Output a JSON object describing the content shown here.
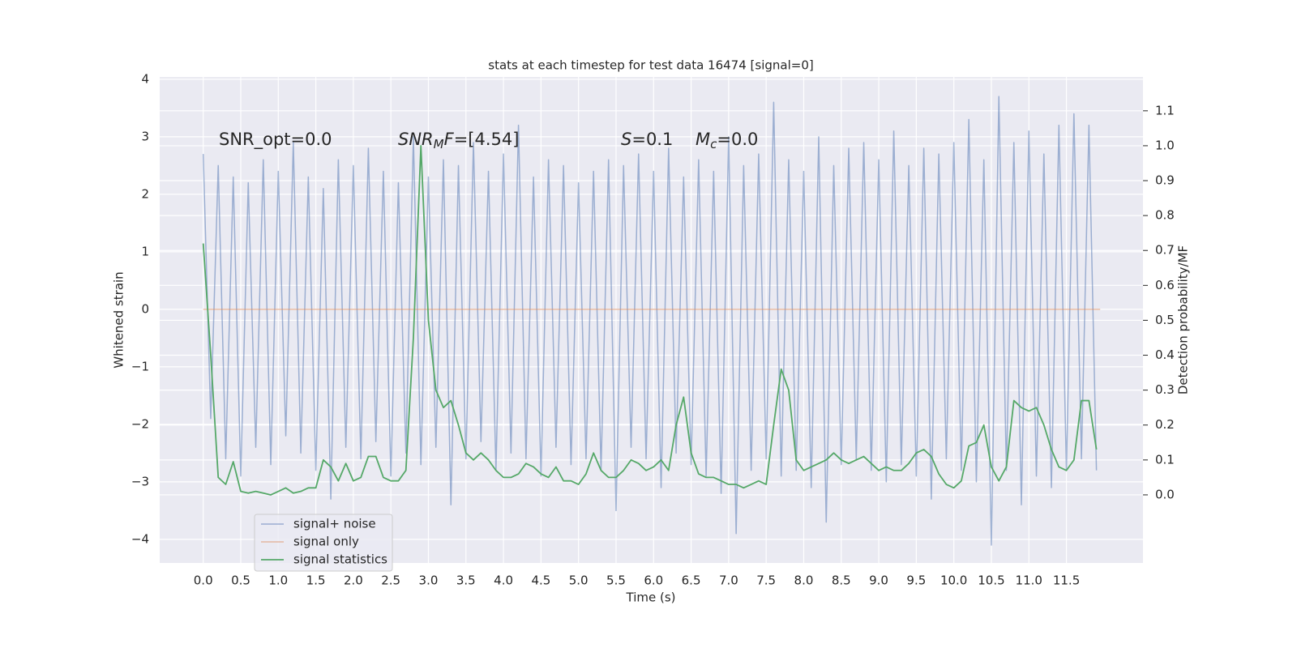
{
  "chart_data": {
    "type": "line",
    "title": "stats at each timestep for test data 16474 [signal=0]",
    "xlabel": "Time (s)",
    "ylabel": "Whitened strain",
    "y2label": "Detection probability/MF",
    "annotations": [
      [
        "SNR_opt=0.0"
      ],
      [
        "SNR",
        "M",
        "F",
        "=[4.54]"
      ],
      [
        "S",
        "=0.1"
      ],
      [
        "M",
        "c",
        "=0.0"
      ]
    ],
    "xlim": [
      -0.58,
      12.52
    ],
    "ylim": [
      -4.41,
      4.04
    ],
    "y2lim": [
      -0.195,
      1.197
    ],
    "xticks": [
      {
        "value": 0,
        "label": "0.0"
      },
      {
        "value": 0.5,
        "label": "0.5"
      },
      {
        "value": 1,
        "label": "1.0"
      },
      {
        "value": 1.5,
        "label": "1.5"
      },
      {
        "value": 2,
        "label": "2.0"
      },
      {
        "value": 2.5,
        "label": "2.5"
      },
      {
        "value": 3,
        "label": "3.0"
      },
      {
        "value": 3.5,
        "label": "3.5"
      },
      {
        "value": 4,
        "label": "4.0"
      },
      {
        "value": 4.5,
        "label": "4.5"
      },
      {
        "value": 5,
        "label": "5.0"
      },
      {
        "value": 5.5,
        "label": "5.5"
      },
      {
        "value": 6,
        "label": "6.0"
      },
      {
        "value": 6.5,
        "label": "6.5"
      },
      {
        "value": 7,
        "label": "7.0"
      },
      {
        "value": 7.5,
        "label": "7.5"
      },
      {
        "value": 8,
        "label": "8.0"
      },
      {
        "value": 8.5,
        "label": "8.5"
      },
      {
        "value": 9,
        "label": "9.0"
      },
      {
        "value": 9.5,
        "label": "9.5"
      },
      {
        "value": 10,
        "label": "10.0"
      },
      {
        "value": 10.5,
        "label": "10.5"
      },
      {
        "value": 11,
        "label": "11.0"
      },
      {
        "value": 11.5,
        "label": "11.5"
      }
    ],
    "yticks": [
      {
        "value": -4,
        "label": "−4"
      },
      {
        "value": -3,
        "label": "−3"
      },
      {
        "value": -2,
        "label": "−2"
      },
      {
        "value": -1,
        "label": "−1"
      },
      0,
      1,
      2,
      3,
      4
    ],
    "y2ticks": [
      {
        "value": 0,
        "label": "0.0"
      },
      {
        "value": 0.1,
        "label": "0.1"
      },
      {
        "value": 0.2,
        "label": "0.2"
      },
      {
        "value": 0.3,
        "label": "0.3"
      },
      {
        "value": 0.4,
        "label": "0.4"
      },
      {
        "value": 0.5,
        "label": "0.5"
      },
      {
        "value": 0.6,
        "label": "0.6"
      },
      {
        "value": 0.7,
        "label": "0.7"
      },
      {
        "value": 0.8,
        "label": "0.8"
      },
      {
        "value": 0.9,
        "label": "0.9"
      },
      {
        "value": 1,
        "label": "1.0"
      },
      {
        "value": 1.1,
        "label": "1.1"
      }
    ],
    "grid": true,
    "legend": "lower left",
    "x": [
      0,
      0.1,
      0.2,
      0.3,
      0.4,
      0.5,
      0.6,
      0.7,
      0.8,
      0.9,
      1,
      1.1,
      1.2,
      1.3,
      1.4,
      1.5,
      1.6,
      1.7,
      1.8,
      1.9,
      2,
      2.1,
      2.2,
      2.3,
      2.4,
      2.5,
      2.6,
      2.7,
      2.8,
      2.9,
      3,
      3.1,
      3.2,
      3.3,
      3.4,
      3.5,
      3.6,
      3.7,
      3.8,
      3.9,
      4,
      4.1,
      4.2,
      4.3,
      4.4,
      4.5,
      4.6,
      4.7,
      4.8,
      4.9,
      5,
      5.1,
      5.2,
      5.3,
      5.4,
      5.5,
      5.6,
      5.7,
      5.8,
      5.9,
      6,
      6.1,
      6.2,
      6.3,
      6.4,
      6.5,
      6.6,
      6.7,
      6.8,
      6.9,
      7,
      7.1,
      7.2,
      7.3,
      7.4,
      7.5,
      7.6,
      7.7,
      7.8,
      7.9,
      8,
      8.1,
      8.2,
      8.3,
      8.4,
      8.5,
      8.6,
      8.7,
      8.8,
      8.9,
      9,
      9.1,
      9.2,
      9.3,
      9.4,
      9.5,
      9.6,
      9.7,
      9.8,
      9.9,
      10,
      10.1,
      10.2,
      10.3,
      10.4,
      10.5,
      10.6,
      10.7,
      10.8,
      10.9,
      11,
      11.1,
      11.2,
      11.3,
      11.4,
      11.5,
      11.6,
      11.7,
      11.8,
      11.9
    ],
    "series": [
      {
        "name": "signal+ noise",
        "color": "#4c72b0",
        "values": [
          2.7,
          -1.9,
          2.5,
          -2.6,
          2.3,
          -2.9,
          2.2,
          -2.4,
          2.6,
          -2.7,
          2.4,
          -2.2,
          2.9,
          -2.5,
          2.3,
          -2.8,
          2.1,
          -3.3,
          2.6,
          -2.4,
          2.5,
          -2.6,
          2.8,
          -2.3,
          2.4,
          -2.9,
          2.2,
          -2.5,
          3.0,
          -2.7,
          2.3,
          -2.4,
          2.6,
          -3.4,
          2.5,
          -2.6,
          2.9,
          -2.3,
          2.4,
          -2.8,
          2.7,
          -2.5,
          3.2,
          -2.6,
          2.3,
          -2.9,
          2.6,
          -2.4,
          2.5,
          -2.7,
          2.2,
          -2.6,
          2.4,
          -2.8,
          2.6,
          -3.5,
          2.5,
          -2.4,
          2.7,
          -2.6,
          2.4,
          -3.1,
          2.8,
          -2.5,
          2.3,
          -2.7,
          2.6,
          -2.9,
          2.4,
          -3.2,
          3.0,
          -3.9,
          2.5,
          -2.8,
          2.7,
          -2.6,
          3.6,
          -2.9,
          2.6,
          -2.8,
          2.4,
          -3.1,
          3.0,
          -3.7,
          2.5,
          -2.7,
          2.8,
          -2.6,
          2.9,
          -2.8,
          2.6,
          -3.0,
          3.1,
          -2.7,
          2.5,
          -2.9,
          2.8,
          -3.3,
          2.7,
          -2.6,
          2.9,
          -2.8,
          3.3,
          -3.0,
          2.6,
          -4.1,
          3.7,
          -2.8,
          2.9,
          -3.4,
          3.1,
          -2.9,
          2.7,
          -3.1,
          3.2,
          -2.8,
          3.4,
          -2.6,
          3.2,
          -2.8
        ]
      },
      {
        "name": "signal only",
        "color": "#dd8452",
        "x": [
          0,
          11.95
        ],
        "values": [
          0,
          0
        ]
      },
      {
        "name": "signal statistics",
        "color": "#55a868",
        "axis": "y2",
        "values": [
          0.72,
          0.4,
          0.05,
          0.03,
          0.095,
          0.01,
          0.005,
          0.01,
          0.005,
          0.0,
          0.01,
          0.02,
          0.005,
          0.01,
          0.02,
          0.02,
          0.1,
          0.08,
          0.04,
          0.09,
          0.04,
          0.05,
          0.11,
          0.11,
          0.05,
          0.04,
          0.04,
          0.07,
          0.45,
          1.0,
          0.5,
          0.3,
          0.25,
          0.27,
          0.2,
          0.12,
          0.1,
          0.12,
          0.1,
          0.07,
          0.05,
          0.05,
          0.06,
          0.09,
          0.08,
          0.06,
          0.05,
          0.08,
          0.04,
          0.04,
          0.03,
          0.06,
          0.12,
          0.07,
          0.05,
          0.05,
          0.07,
          0.1,
          0.09,
          0.07,
          0.08,
          0.1,
          0.07,
          0.2,
          0.28,
          0.12,
          0.06,
          0.05,
          0.05,
          0.04,
          0.03,
          0.03,
          0.02,
          0.03,
          0.04,
          0.03,
          0.2,
          0.36,
          0.3,
          0.1,
          0.07,
          0.08,
          0.09,
          0.1,
          0.12,
          0.1,
          0.09,
          0.1,
          0.11,
          0.09,
          0.07,
          0.08,
          0.07,
          0.07,
          0.09,
          0.12,
          0.13,
          0.11,
          0.06,
          0.03,
          0.02,
          0.04,
          0.14,
          0.15,
          0.2,
          0.08,
          0.04,
          0.08,
          0.27,
          0.25,
          0.24,
          0.25,
          0.2,
          0.13,
          0.08,
          0.07,
          0.1,
          0.27,
          0.27,
          0.13
        ]
      }
    ]
  }
}
